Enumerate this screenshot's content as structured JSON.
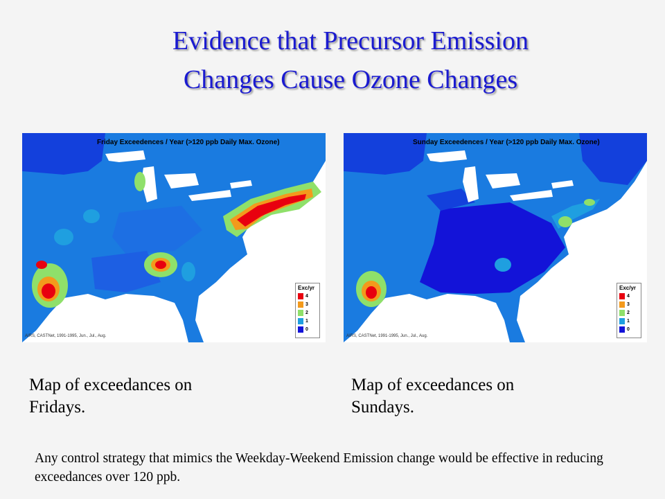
{
  "slide": {
    "title_line1": "Evidence that Precursor Emission",
    "title_line2": "Changes Cause Ozone Changes",
    "note": "Any control strategy that mimics the Weekday-Weekend Emission change would be effective in reducing exceedances over 120 ppb."
  },
  "maps": {
    "friday": {
      "title": "Friday Exceedences / Year (>120 ppb Daily Max. Ozone)",
      "source": "AIRS, CASTNet, 1991-1995, Jun., Jul., Aug.",
      "caption_line1": "Map of exceedances on",
      "caption_line2": "Fridays."
    },
    "sunday": {
      "title": "Sunday Exceedences / Year (>120 ppb Daily Max. Ozone)",
      "source": "AIRS, CASTNet, 1991-1995, Jun., Jul., Aug.",
      "caption_line1": "Map of exceedances on",
      "caption_line2": "Sundays."
    }
  },
  "legend": {
    "title": "Exc/yr",
    "levels": [
      "4",
      "3",
      "2",
      "1",
      "0"
    ],
    "colors": [
      "#e8000f",
      "#f39a1c",
      "#8fe06a",
      "#1f9fe0",
      "#1313d8"
    ]
  },
  "colors": {
    "title": "#1a1ad0",
    "lakes": "#ffffff",
    "background": "#f4f4f4"
  }
}
